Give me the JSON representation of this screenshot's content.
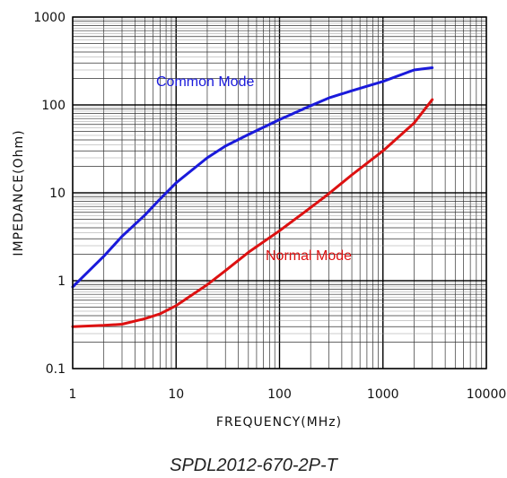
{
  "caption": "SPDL2012-670-2P-T",
  "chart_data": {
    "type": "line",
    "xlabel": "FREQUENCY(MHz)",
    "ylabel": "IMPEDANCE(Ohm)",
    "xscale": "log",
    "yscale": "log",
    "xlim": [
      1,
      10000
    ],
    "ylim": [
      0.1,
      1000
    ],
    "xticks": [
      1,
      10,
      100,
      1000,
      10000
    ],
    "xtick_labels": [
      "1",
      "10",
      "100",
      "1000",
      "10000"
    ],
    "yticks": [
      0.1,
      1,
      10,
      100,
      1000
    ],
    "ytick_labels": [
      "0.1",
      "1",
      "10",
      "100",
      "1000"
    ],
    "grid": true,
    "series": [
      {
        "name": "Common Mode",
        "color": "#1a1adb",
        "x": [
          1,
          2,
          3,
          5,
          7,
          10,
          20,
          30,
          50,
          100,
          200,
          300,
          500,
          1000,
          2000,
          3000
        ],
        "y": [
          0.85,
          1.9,
          3.2,
          5.6,
          8.5,
          13,
          25,
          34,
          46,
          68,
          98,
          120,
          145,
          185,
          250,
          265
        ]
      },
      {
        "name": "Normal Mode",
        "color": "#dd1111",
        "x": [
          1,
          2,
          3,
          5,
          7,
          10,
          20,
          30,
          50,
          100,
          200,
          300,
          500,
          1000,
          2000,
          3000
        ],
        "y": [
          0.3,
          0.31,
          0.32,
          0.37,
          0.42,
          0.52,
          0.9,
          1.3,
          2.1,
          3.7,
          6.8,
          9.8,
          16,
          30,
          62,
          115
        ]
      }
    ]
  }
}
